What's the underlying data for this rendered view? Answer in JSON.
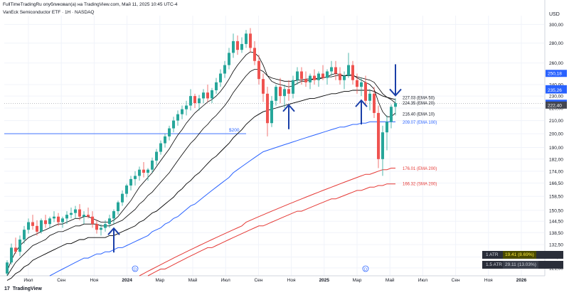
{
  "header": {
    "publisher_line": "FullTimeTradingRu опубликовал(а) на TradingView.com, Май 11, 2025 10:45 UTC-4",
    "symbol_line": "VanEck Semiconductor ETF · 1Н · NASDAQ"
  },
  "currency": "USD",
  "footer": {
    "logo_glyph": "17",
    "logo_text": "TradingView"
  },
  "atr": [
    {
      "label": "1 ATR",
      "value": "19.41 (8.69%)"
    },
    {
      "label": "1.5 ATR",
      "value": "29.11 (13.03%)"
    }
  ],
  "colors": {
    "up": "#26a69a",
    "down": "#ef5350",
    "ema10": "#000000",
    "ema20": "#000000",
    "ema50": "#000000",
    "ema100": "#2962ff",
    "ema200": "#e53935",
    "sma200": "#e53935",
    "arrow": "#1a3fa8",
    "level200": "#2962ff",
    "price_tag": "#2962ff"
  },
  "chart_data": {
    "type": "candlestick",
    "timeframe": "1W",
    "y_scale": "log",
    "ylim": [
      118,
      310
    ],
    "y_ticks": [
      "300,00",
      "280,00",
      "260,00",
      "240,00",
      "230,00",
      "220,00",
      "210,00",
      "200,00",
      "190,00",
      "182,00",
      "174,00",
      "166,50",
      "158,50",
      "150,50",
      "144,50",
      "138,50",
      "132,50",
      "126,50",
      "121,50"
    ],
    "x_ticks": [
      "Июл",
      "Сен",
      "Ноя",
      "2024",
      "Мар",
      "Май",
      "Июл",
      "Сен",
      "Ноя",
      "2025",
      "Мар",
      "Май",
      "Июл",
      "Сен",
      "Ноя",
      "2026"
    ],
    "candles": [
      [
        119,
        125,
        118,
        124
      ],
      [
        124,
        133,
        123,
        131
      ],
      [
        131,
        136,
        128,
        129
      ],
      [
        129,
        137,
        127,
        135
      ],
      [
        135,
        142,
        133,
        140
      ],
      [
        140,
        146,
        138,
        144
      ],
      [
        144,
        148,
        140,
        142
      ],
      [
        142,
        145,
        137,
        139
      ],
      [
        139,
        146,
        138,
        145
      ],
      [
        145,
        148,
        141,
        143
      ],
      [
        143,
        147,
        141,
        146
      ],
      [
        146,
        150,
        144,
        147
      ],
      [
        147,
        149,
        142,
        144
      ],
      [
        144,
        147,
        141,
        146
      ],
      [
        146,
        150,
        143,
        148
      ],
      [
        148,
        152,
        146,
        149
      ],
      [
        149,
        153,
        146,
        151
      ],
      [
        151,
        154,
        145,
        147
      ],
      [
        147,
        150,
        143,
        148
      ],
      [
        148,
        152,
        146,
        147
      ],
      [
        147,
        150,
        141,
        143
      ],
      [
        143,
        145,
        138,
        140
      ],
      [
        140,
        143,
        137,
        141
      ],
      [
        141,
        145,
        139,
        143
      ],
      [
        143,
        148,
        141,
        146
      ],
      [
        146,
        151,
        143,
        150
      ],
      [
        150,
        156,
        148,
        155
      ],
      [
        155,
        162,
        153,
        160
      ],
      [
        160,
        166,
        158,
        165
      ],
      [
        165,
        171,
        162,
        169
      ],
      [
        169,
        174,
        165,
        171
      ],
      [
        171,
        177,
        168,
        175
      ],
      [
        175,
        180,
        170,
        173
      ],
      [
        173,
        176,
        168,
        175
      ],
      [
        175,
        183,
        173,
        181
      ],
      [
        181,
        189,
        178,
        187
      ],
      [
        187,
        195,
        185,
        193
      ],
      [
        193,
        200,
        190,
        198
      ],
      [
        198,
        206,
        195,
        204
      ],
      [
        204,
        213,
        201,
        210
      ],
      [
        210,
        218,
        206,
        215
      ],
      [
        215,
        222,
        211,
        219
      ],
      [
        219,
        226,
        214,
        222
      ],
      [
        222,
        236,
        218,
        230
      ],
      [
        230,
        232,
        220,
        224
      ],
      [
        224,
        231,
        218,
        228
      ],
      [
        228,
        236,
        224,
        233
      ],
      [
        233,
        240,
        225,
        228
      ],
      [
        228,
        237,
        224,
        235
      ],
      [
        235,
        246,
        232,
        242
      ],
      [
        242,
        254,
        238,
        250
      ],
      [
        250,
        262,
        246,
        258
      ],
      [
        258,
        275,
        254,
        270
      ],
      [
        270,
        290,
        265,
        282
      ],
      [
        282,
        288,
        268,
        273
      ],
      [
        273,
        286,
        270,
        279
      ],
      [
        279,
        294,
        275,
        290
      ],
      [
        290,
        296,
        270,
        275
      ],
      [
        275,
        282,
        258,
        262
      ],
      [
        262,
        268,
        240,
        245
      ],
      [
        245,
        250,
        225,
        232
      ],
      [
        232,
        238,
        198,
        208
      ],
      [
        208,
        230,
        205,
        226
      ],
      [
        226,
        240,
        222,
        238
      ],
      [
        238,
        246,
        224,
        230
      ],
      [
        230,
        240,
        220,
        236
      ],
      [
        236,
        244,
        226,
        232
      ],
      [
        232,
        248,
        228,
        244
      ],
      [
        244,
        256,
        240,
        252
      ],
      [
        252,
        256,
        240,
        245
      ],
      [
        245,
        252,
        238,
        242
      ],
      [
        242,
        250,
        236,
        248
      ],
      [
        248,
        254,
        240,
        244
      ],
      [
        244,
        252,
        238,
        250
      ],
      [
        250,
        258,
        244,
        246
      ],
      [
        246,
        254,
        240,
        252
      ],
      [
        252,
        262,
        248,
        256
      ],
      [
        256,
        262,
        244,
        250
      ],
      [
        250,
        256,
        240,
        244
      ],
      [
        244,
        252,
        236,
        248
      ],
      [
        248,
        270,
        246,
        258
      ],
      [
        258,
        262,
        240,
        244
      ],
      [
        244,
        250,
        232,
        238
      ],
      [
        238,
        246,
        230,
        242
      ],
      [
        242,
        248,
        222,
        226
      ],
      [
        226,
        236,
        218,
        232
      ],
      [
        232,
        238,
        212,
        216
      ],
      [
        216,
        222,
        176,
        182
      ],
      [
        182,
        206,
        171,
        201
      ],
      [
        201,
        214,
        188,
        209
      ],
      [
        209,
        223,
        204,
        221
      ],
      [
        221,
        228,
        214,
        224
      ]
    ],
    "series": [
      {
        "name": "EMA 10",
        "last": 216.4,
        "values": [
          120,
          125,
          129,
          132,
          134,
          136,
          137,
          138,
          139,
          140,
          141,
          142,
          143,
          143,
          144,
          145,
          146,
          146,
          147,
          147,
          146,
          145,
          144,
          144,
          144,
          145,
          147,
          150,
          153,
          156,
          160,
          164,
          167,
          170,
          173,
          177,
          181,
          185,
          189,
          194,
          199,
          203,
          208,
          212,
          216,
          219,
          222,
          225,
          227,
          230,
          234,
          239,
          245,
          252,
          258,
          263,
          268,
          271,
          270,
          266,
          258,
          248,
          243,
          241,
          240,
          239,
          238,
          239,
          241,
          243,
          243,
          244,
          245,
          245,
          246,
          247,
          249,
          250,
          249,
          248,
          249,
          249,
          246,
          244,
          242,
          240,
          236,
          225,
          217,
          213,
          213,
          216
        ]
      },
      {
        "name": "EMA 20",
        "last": 224.35,
        "values": [
          118,
          121,
          124,
          126,
          128,
          130,
          132,
          133,
          134,
          135,
          137,
          138,
          139,
          139,
          140,
          141,
          142,
          142,
          143,
          143,
          143,
          143,
          142,
          142,
          142,
          143,
          144,
          145,
          147,
          149,
          151,
          154,
          156,
          159,
          161,
          164,
          167,
          170,
          173,
          177,
          181,
          185,
          189,
          193,
          196,
          200,
          204,
          207,
          211,
          214,
          218,
          222,
          227,
          233,
          238,
          243,
          248,
          252,
          254,
          254,
          252,
          248,
          246,
          245,
          244,
          243,
          243,
          243,
          244,
          244,
          245,
          245,
          245,
          246,
          246,
          247,
          247,
          248,
          248,
          248,
          248,
          248,
          247,
          246,
          245,
          244,
          242,
          237,
          232,
          229,
          227,
          224
        ]
      },
      {
        "name": "EMA 50",
        "last": 227.03,
        "values": [
          116,
          117,
          119,
          120,
          122,
          123,
          125,
          126,
          127,
          128,
          129,
          130,
          131,
          132,
          133,
          133,
          134,
          135,
          135,
          136,
          136,
          136,
          136,
          136,
          137,
          137,
          138,
          139,
          140,
          141,
          142,
          144,
          145,
          147,
          149,
          150,
          152,
          154,
          156,
          158,
          161,
          163,
          166,
          168,
          171,
          173,
          176,
          179,
          182,
          184,
          187,
          190,
          193,
          197,
          200,
          203,
          207,
          210,
          213,
          215,
          217,
          218,
          219,
          220,
          221,
          222,
          223,
          224,
          225,
          226,
          227,
          228,
          228,
          229,
          230,
          231,
          232,
          232,
          233,
          234,
          234,
          235,
          235,
          235,
          235,
          235,
          234,
          232,
          230,
          229,
          228,
          227
        ]
      },
      {
        "name": "EMA 100",
        "last": 209.07,
        "values": [
          null,
          null,
          null,
          null,
          null,
          null,
          null,
          null,
          null,
          null,
          118,
          119,
          120,
          121,
          122,
          123,
          124,
          125,
          126,
          126,
          127,
          128,
          128,
          129,
          129,
          130,
          131,
          131,
          132,
          133,
          134,
          135,
          136,
          137,
          139,
          140,
          141,
          143,
          144,
          146,
          147,
          149,
          151,
          153,
          154,
          156,
          158,
          160,
          162,
          164,
          166,
          168,
          170,
          173,
          175,
          177,
          179,
          181,
          183,
          185,
          187,
          188,
          189,
          190,
          191,
          192,
          193,
          194,
          195,
          196,
          197,
          198,
          199,
          200,
          201,
          202,
          203,
          204,
          205,
          205,
          206,
          207,
          207,
          208,
          208,
          209,
          209,
          209,
          209,
          209,
          209,
          209
        ]
      },
      {
        "name": "EMA 200",
        "last": 176.01,
        "values": [
          null,
          null,
          null,
          null,
          null,
          null,
          null,
          null,
          null,
          null,
          null,
          null,
          null,
          null,
          null,
          null,
          null,
          null,
          null,
          null,
          null,
          null,
          null,
          null,
          null,
          null,
          null,
          null,
          null,
          null,
          null,
          118,
          119,
          120,
          121,
          122,
          123,
          124,
          125,
          126,
          127,
          128,
          129,
          130,
          131,
          132,
          133,
          134,
          135,
          136,
          137,
          138,
          139,
          140,
          141,
          142,
          144,
          145,
          146,
          147,
          148,
          149,
          150,
          151,
          152,
          153,
          154,
          155,
          156,
          157,
          158,
          159,
          160,
          161,
          162,
          163,
          164,
          165,
          166,
          167,
          168,
          169,
          170,
          171,
          172,
          172,
          173,
          174,
          175,
          175,
          176,
          176
        ]
      },
      {
        "name": "SMA 200",
        "last": 166.32,
        "values": [
          null,
          null,
          null,
          null,
          null,
          null,
          null,
          null,
          null,
          null,
          null,
          null,
          null,
          null,
          null,
          null,
          null,
          null,
          null,
          null,
          null,
          null,
          null,
          null,
          null,
          null,
          null,
          null,
          null,
          null,
          null,
          null,
          null,
          118,
          119,
          120,
          121,
          121,
          122,
          123,
          124,
          125,
          126,
          127,
          128,
          129,
          130,
          131,
          131,
          132,
          133,
          134,
          135,
          136,
          137,
          138,
          139,
          140,
          141,
          142,
          142,
          143,
          144,
          145,
          146,
          147,
          148,
          149,
          150,
          150,
          151,
          152,
          153,
          154,
          155,
          156,
          157,
          157,
          158,
          159,
          160,
          161,
          162,
          162,
          163,
          164,
          164,
          165,
          165,
          166,
          166,
          166
        ]
      }
    ],
    "ema_labels": [
      {
        "name": "EMA 50",
        "text": "227.03 (EMA 50)",
        "value": 227.03
      },
      {
        "name": "EMA 20",
        "text": "224.35 (EMA 20)",
        "value": 224.35
      },
      {
        "name": "EMA 10",
        "text": "216.40 (EMA 10)",
        "value": 216.4
      },
      {
        "name": "EMA 100",
        "text": "209.07 (EMA 100)",
        "value": 209.07
      },
      {
        "name": "EMA 200",
        "text": "176.01 (EMA 200)",
        "value": 176.01
      },
      {
        "name": "SMA 200",
        "text": "166.32 (SMA 200)",
        "value": 166.32
      }
    ],
    "price_tags": [
      {
        "text": "250,18",
        "value": 250.18
      },
      {
        "text": "236,34",
        "value": 236.34
      },
      {
        "text": "235,26",
        "value": 235.26
      },
      {
        "text": "223,93",
        "value": 223.93
      },
      {
        "text": "222,40",
        "value": 222.4
      }
    ],
    "level_line": {
      "label": "$200",
      "value": 200,
      "from_candle": 0,
      "to_candle": 56
    },
    "current_price_line": 223.93,
    "arrows": [
      {
        "candle": 25,
        "direction": "up"
      },
      {
        "candle": 66,
        "direction": "up"
      },
      {
        "candle": 83,
        "direction": "up"
      },
      {
        "candle": 91,
        "direction": "down"
      }
    ],
    "event_markers": [
      {
        "candle": 30,
        "text": "D"
      },
      {
        "candle": 84,
        "text": "D"
      }
    ]
  }
}
